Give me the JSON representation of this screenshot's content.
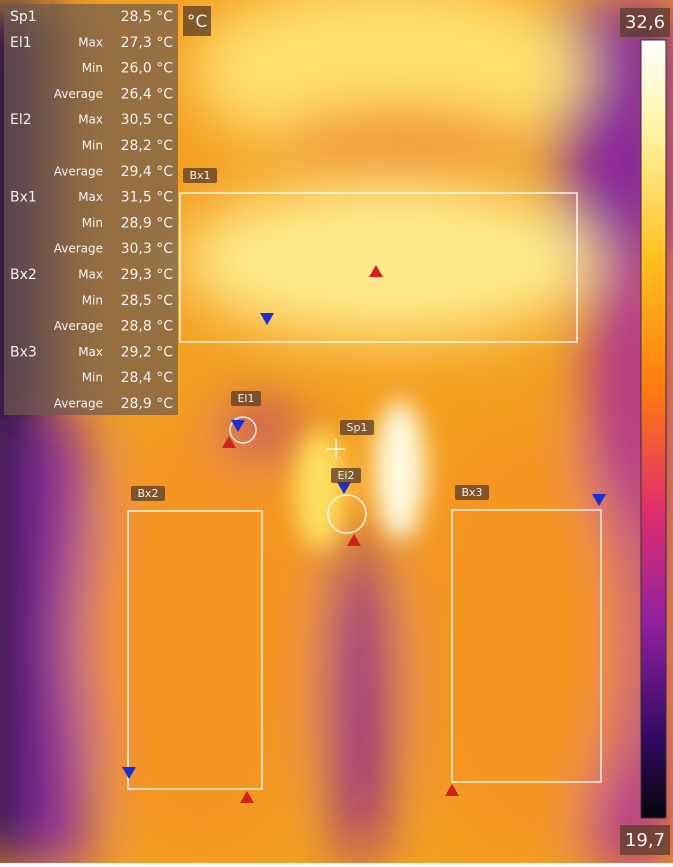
{
  "unit": "°C",
  "scale": {
    "max": "32,6",
    "min": "19,7"
  },
  "table": {
    "rows": [
      {
        "name": "Sp1",
        "value": "28,5 °C"
      },
      {
        "name": "El1",
        "stat": "Max",
        "value": "27,3 °C"
      },
      {
        "stat": "Min",
        "value": "26,0 °C"
      },
      {
        "stat": "Average",
        "value": "26,4 °C"
      },
      {
        "name": "El2",
        "stat": "Max",
        "value": "30,5 °C"
      },
      {
        "stat": "Min",
        "value": "28,2 °C"
      },
      {
        "stat": "Average",
        "value": "29,4 °C"
      },
      {
        "name": "Bx1",
        "stat": "Max",
        "value": "31,5 °C"
      },
      {
        "stat": "Min",
        "value": "28,9 °C"
      },
      {
        "stat": "Average",
        "value": "30,3 °C"
      },
      {
        "name": "Bx2",
        "stat": "Max",
        "value": "29,3 °C"
      },
      {
        "stat": "Min",
        "value": "28,5 °C"
      },
      {
        "stat": "Average",
        "value": "28,8 °C"
      },
      {
        "name": "Bx3",
        "stat": "Max",
        "value": "29,2 °C"
      },
      {
        "stat": "Min",
        "value": "28,4 °C"
      },
      {
        "stat": "Average",
        "value": "28,9 °C"
      }
    ]
  },
  "overlays": {
    "bx1": "Bx1",
    "el1": "El1",
    "sp1": "Sp1",
    "el2": "El2",
    "bx2": "Bx2",
    "bx3": "Bx3"
  }
}
